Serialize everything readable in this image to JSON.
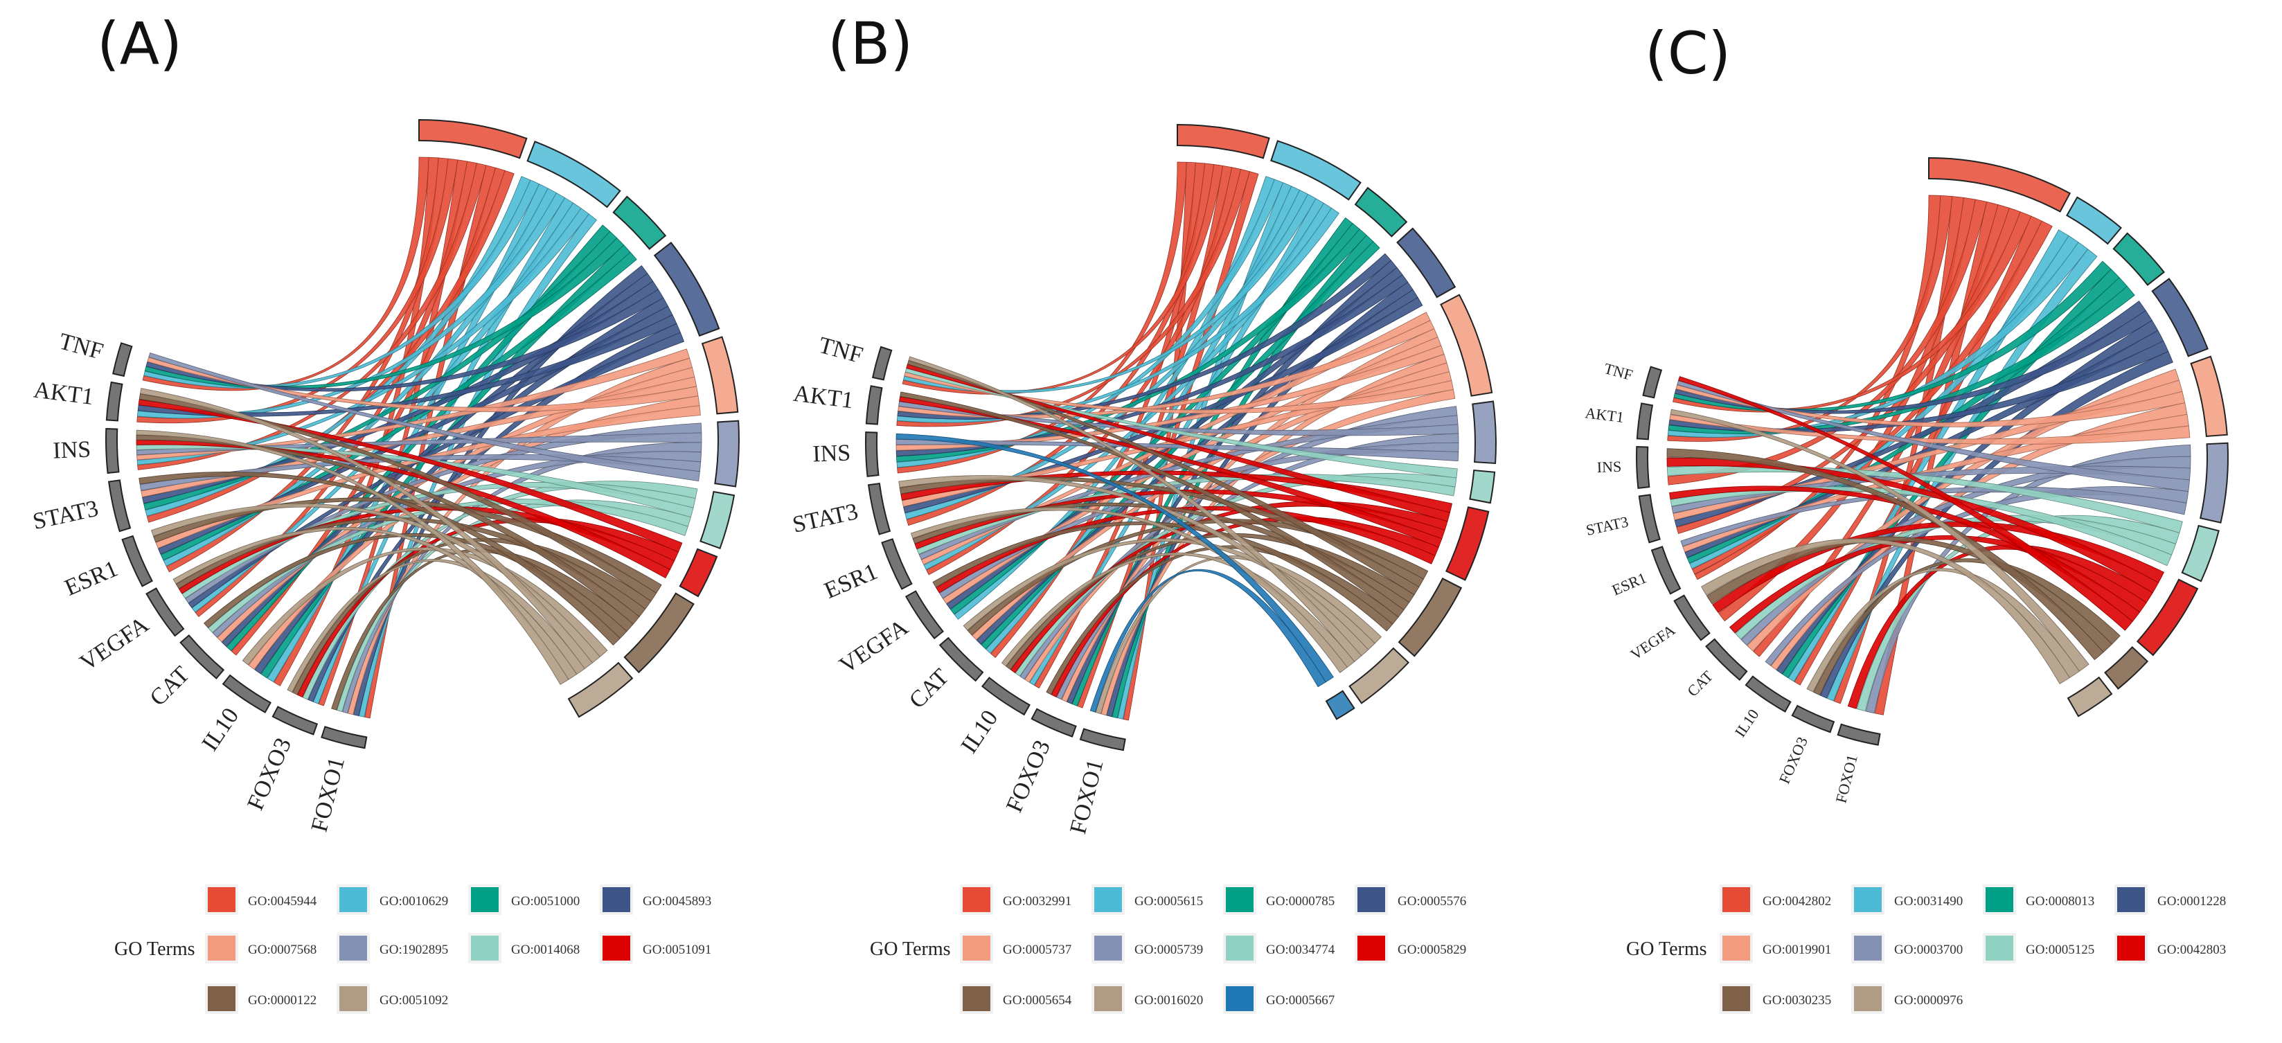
{
  "chart_data": [
    {
      "type": "chord",
      "panel_label": "(A)",
      "genes": [
        "TNF",
        "AKT1",
        "INS",
        "STAT3",
        "ESR1",
        "VEGFA",
        "CAT",
        "IL10",
        "FOXO3",
        "FOXO1"
      ],
      "gene_sizes": [
        5,
        6,
        7,
        8,
        8,
        8,
        8,
        8,
        7,
        7
      ],
      "terms": [
        {
          "id": "GO:0045944",
          "color": "#E64B35",
          "size": 10
        },
        {
          "id": "GO:0010629",
          "color": "#4DBBD5",
          "size": 9
        },
        {
          "id": "GO:0051000",
          "color": "#00A087",
          "size": 5
        },
        {
          "id": "GO:0045893",
          "color": "#3C5488",
          "size": 9
        },
        {
          "id": "GO:0007568",
          "color": "#F39B7F",
          "size": 7
        },
        {
          "id": "GO:1902895",
          "color": "#8491B4",
          "size": 6
        },
        {
          "id": "GO:0014068",
          "color": "#91D1C2",
          "size": 5
        },
        {
          "id": "GO:0051091",
          "color": "#DC0000",
          "size": 4
        },
        {
          "id": "GO:0000122",
          "color": "#7E6148",
          "size": 8
        },
        {
          "id": "GO:0051092",
          "color": "#B09C85",
          "size": 6
        }
      ],
      "legend_title": "GO Terms"
    },
    {
      "type": "chord",
      "panel_label": "(B)",
      "genes": [
        "TNF",
        "AKT1",
        "INS",
        "STAT3",
        "ESR1",
        "VEGFA",
        "CAT",
        "IL10",
        "FOXO3",
        "FOXO1"
      ],
      "gene_sizes": [
        5,
        6,
        7,
        8,
        8,
        8,
        8,
        8,
        7,
        7
      ],
      "terms": [
        {
          "id": "GO:0032991",
          "color": "#E64B35",
          "size": 9
        },
        {
          "id": "GO:0005615",
          "color": "#4DBBD5",
          "size": 9
        },
        {
          "id": "GO:0000785",
          "color": "#00A087",
          "size": 5
        },
        {
          "id": "GO:0005576",
          "color": "#3C5488",
          "size": 7
        },
        {
          "id": "GO:0005737",
          "color": "#F39B7F",
          "size": 10
        },
        {
          "id": "GO:0005739",
          "color": "#8491B4",
          "size": 6
        },
        {
          "id": "GO:0034774",
          "color": "#91D1C2",
          "size": 3
        },
        {
          "id": "GO:0005829",
          "color": "#DC0000",
          "size": 7
        },
        {
          "id": "GO:0005654",
          "color": "#7E6148",
          "size": 8
        },
        {
          "id": "GO:0016020",
          "color": "#B09C85",
          "size": 6
        },
        {
          "id": "GO:0005667",
          "color": "#1F77B4",
          "size": 2
        }
      ],
      "legend_title": "GO Terms"
    },
    {
      "type": "chord",
      "panel_label": "(C)",
      "genes": [
        "TNF",
        "AKT1",
        "INS",
        "STAT3",
        "ESR1",
        "VEGFA",
        "CAT",
        "IL10",
        "FOXO3",
        "FOXO1"
      ],
      "gene_sizes": [
        5,
        6,
        7,
        8,
        8,
        8,
        8,
        8,
        7,
        7
      ],
      "terms": [
        {
          "id": "GO:0042802",
          "color": "#E64B35",
          "size": 11
        },
        {
          "id": "GO:0031490",
          "color": "#4DBBD5",
          "size": 4
        },
        {
          "id": "GO:0008013",
          "color": "#00A087",
          "size": 4
        },
        {
          "id": "GO:0001228",
          "color": "#3C5488",
          "size": 6
        },
        {
          "id": "GO:0019901",
          "color": "#F39B7F",
          "size": 6
        },
        {
          "id": "GO:0003700",
          "color": "#8491B4",
          "size": 6
        },
        {
          "id": "GO:0005125",
          "color": "#91D1C2",
          "size": 4
        },
        {
          "id": "GO:0042803",
          "color": "#DC0000",
          "size": 6
        },
        {
          "id": "GO:0030235",
          "color": "#7E6148",
          "size": 3
        },
        {
          "id": "GO:0000976",
          "color": "#B09C85",
          "size": 3
        }
      ],
      "legend_title": "GO Terms"
    }
  ]
}
